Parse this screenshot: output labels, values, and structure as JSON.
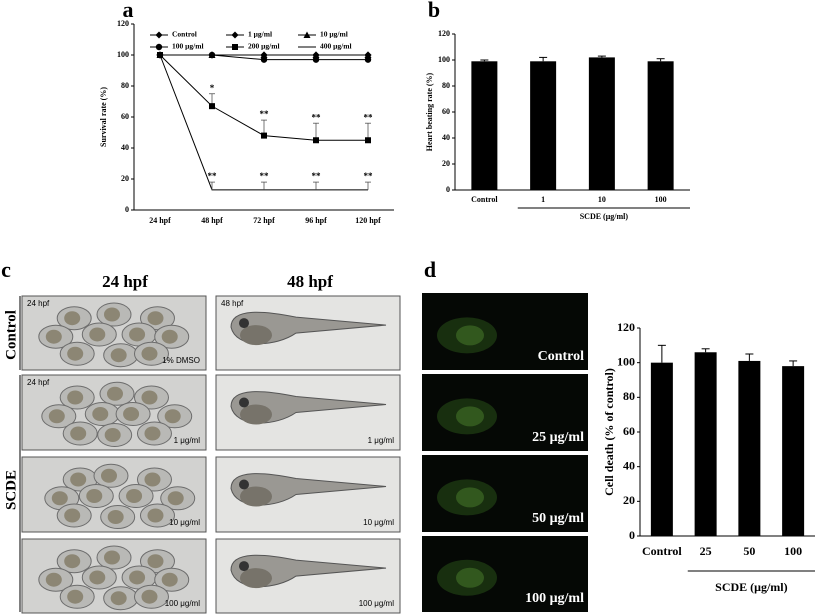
{
  "panel_labels": [
    "a",
    "b",
    "c",
    "d"
  ],
  "chart_data": [
    {
      "type": "line",
      "y_label": "Survival rate (%)",
      "categories": [
        "24 hpf",
        "48 hpf",
        "72 hpf",
        "96 hpf",
        "120 hpf"
      ],
      "ylim": [
        0,
        120
      ],
      "yticks": [
        0,
        20,
        40,
        60,
        80,
        100,
        120
      ],
      "series": [
        {
          "name": "Control",
          "color": "#000000",
          "marker": "diamond",
          "values": [
            100,
            100,
            100,
            100,
            100
          ]
        },
        {
          "name": "1 μg/ml",
          "color": "#000000",
          "marker": "diamond",
          "values": [
            100,
            100,
            100,
            100,
            100
          ]
        },
        {
          "name": "10 μg/ml",
          "color": "#000000",
          "marker": "triangle",
          "values": [
            100,
            100,
            100,
            100,
            100
          ]
        },
        {
          "name": "100 μg/ml",
          "color": "#000000",
          "marker": "circle",
          "values": [
            100,
            100,
            97,
            97,
            97
          ]
        },
        {
          "name": "200 μg/ml",
          "color": "#000000",
          "marker": "square",
          "values": [
            100,
            67,
            48,
            45,
            45
          ],
          "errors": [
            null,
            8,
            10,
            11,
            11
          ],
          "labels": [
            null,
            "*",
            "**",
            "**",
            "**"
          ]
        },
        {
          "name": "400 μg/ml",
          "color": "#000000",
          "marker": "none",
          "values": [
            100,
            13,
            13,
            13,
            13
          ],
          "errors": [
            null,
            5,
            5,
            5,
            5
          ],
          "labels": [
            null,
            "**",
            "**",
            "**",
            "**"
          ]
        }
      ]
    },
    {
      "type": "bar",
      "y_label": "Heart beating rate (%)",
      "x_group_label": "SCDE (μg/ml)",
      "categories": [
        "Control",
        "1",
        "10",
        "100"
      ],
      "values": [
        99,
        99,
        102,
        99
      ],
      "errors": [
        1,
        3,
        1,
        2
      ],
      "color": "#000000",
      "ylim": [
        0,
        120
      ],
      "yticks": [
        0,
        20,
        40,
        60,
        80,
        100,
        120
      ]
    },
    {
      "type": "bar",
      "y_label": "Cell death (% of control)",
      "x_group_label": "SCDE (μg/ml)",
      "categories": [
        "Control",
        "25",
        "50",
        "100"
      ],
      "values": [
        100,
        106,
        101,
        98
      ],
      "errors": [
        10,
        2,
        4,
        3
      ],
      "color": "#000000",
      "ylim": [
        0,
        120
      ],
      "yticks": [
        0,
        20,
        40,
        60,
        80,
        100,
        120
      ]
    }
  ],
  "panel_c": {
    "column_headers": [
      "24 hpf",
      "48 hpf"
    ],
    "row_labels": [
      "Control",
      "SCDE"
    ],
    "rows": [
      {
        "left": {
          "top": "24 hpf",
          "bottom": "1% DMSO"
        },
        "right": {
          "top": "48 hpf"
        }
      },
      {
        "left": {
          "top": "24 hpf",
          "bottom": "1 μg/ml"
        },
        "right": {
          "bottom": "1 μg/ml"
        }
      },
      {
        "left": {
          "bottom": "10 μg/ml"
        },
        "right": {
          "bottom": "10 μg/ml"
        }
      },
      {
        "left": {
          "bottom": "100 μg/ml"
        },
        "right": {
          "bottom": "100 μg/ml"
        }
      }
    ]
  },
  "panel_d_images": [
    "Control",
    "25 μg/ml",
    "50 μg/ml",
    "100 μg/ml"
  ]
}
